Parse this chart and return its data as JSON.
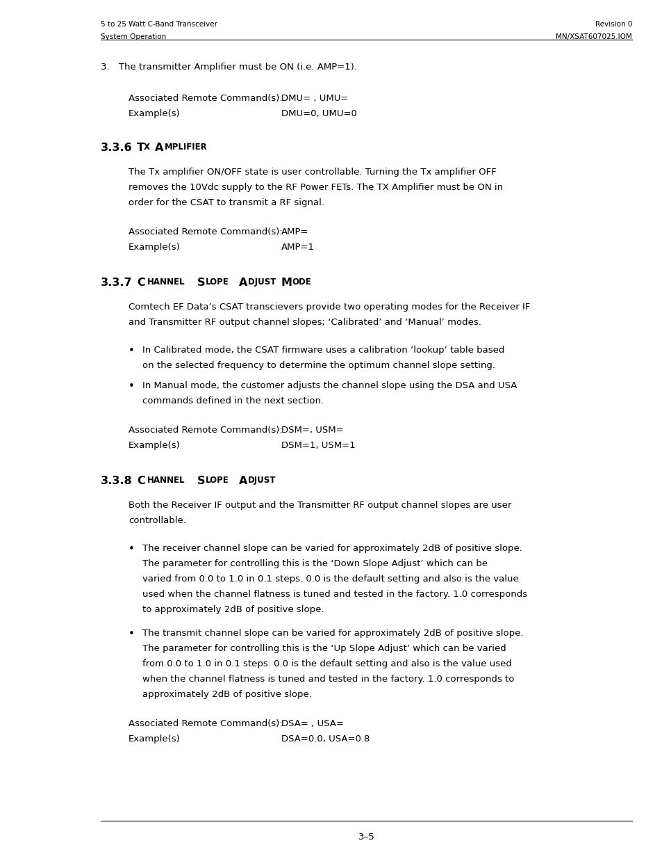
{
  "bg_color": "#ffffff",
  "page_width": 9.54,
  "page_height": 12.35,
  "header_left_line1": "5 to 25 Watt C-Band Transceiver",
  "header_left_line2": "System Operation",
  "header_right_line1": "Revision 0",
  "header_right_line2": "MN/XSAT607025.IOM",
  "footer_text": "3–5",
  "item3_text": "3. The transmitter Amplifier must be ON (i.e. AMP=1).",
  "cmd1_label": "Associated Remote Command(s):",
  "cmd1_value": "DMU= , UMU=",
  "ex1_label": "Example(s)",
  "ex1_value": "DMU=0, UMU=0",
  "section336_title": "3.3.6 Tʟ AᴍPʟɪғɪєʀ",
  "section336_title_plain": "3.3.6 Tx Amplifier",
  "section336_body": "The Tx amplifier ON/OFF state is user controllable. Turning the Tx amplifier OFF\nremoves the 10Vdc supply to the RF Power FETs. The TX Amplifier must be ON in\norder for the CSAT to transmit a RF signal.",
  "cmd2_label": "Associated Remote Command(s):",
  "cmd2_value": "AMP=",
  "ex2_label": "Example(s)",
  "ex2_value": "AMP=1",
  "section337_title_plain": "3.3.7 Channel Slope Adjust  Mode",
  "section337_body": "Comtech EF Data’s CSAT transcievers provide two operating modes for the Receiver IF\nand Transmitter RF output channel slopes; ‘Calibrated’ and ‘Manual’ modes.",
  "bullet1": "In Calibrated mode, the CSAT firmware uses a calibration ‘lookup’ table based\non the selected frequency to determine the optimum channel slope setting.",
  "bullet2": "In Manual mode, the customer adjusts the channel slope using the DSA and USA\ncommands defined in the next section.",
  "cmd3_label": "Associated Remote Command(s):",
  "cmd3_value": "DSM=, USM=",
  "ex3_label": "Example(s)",
  "ex3_value": "DSM=1, USM=1",
  "section338_title_plain": "3.3.8 Channel Slope Adjust",
  "section338_body": "Both the Receiver IF output and the Transmitter RF output channel slopes are user\ncontrollable.",
  "bullet3": "The receiver channel slope can be varied for approximately 2dB of positive slope.\nThe parameter for controlling this is the ‘Down Slope Adjust’ which can be\nvaried from 0.0 to 1.0 in 0.1 steps. 0.0 is the default setting and also is the value\nused when the channel flatness is tuned and tested in the factory. 1.0 corresponds\nto approximately 2dB of positive slope.",
  "bullet4": "The transmit channel slope can be varied for approximately 2dB of positive slope.\nThe parameter for controlling this is the ‘Up Slope Adjust’ which can be varied\nfrom 0.0 to 1.0 in 0.1 steps. 0.0 is the default setting and also is the value used\nwhen the channel flatness is tuned and tested in the factory. 1.0 corresponds to\napproximately 2dB of positive slope.",
  "cmd4_label": "Associated Remote Command(s):",
  "cmd4_value": "DSA= , USA=",
  "ex4_label": "Example(s)",
  "ex4_value": "DSA=0.0, USA=0.8"
}
